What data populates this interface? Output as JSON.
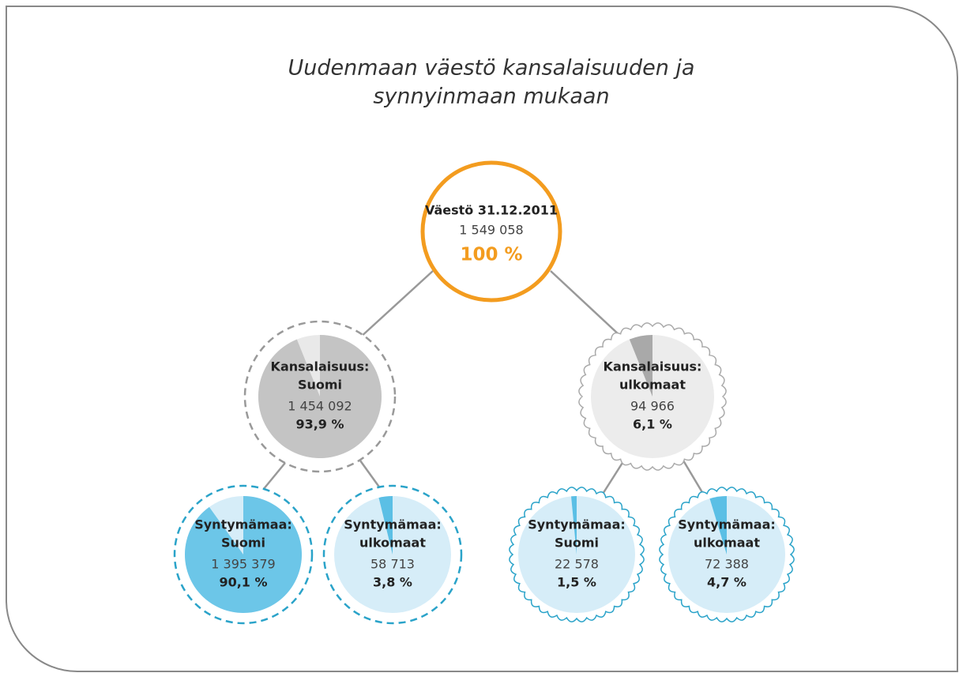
{
  "title": [
    "Uudenmaan väestö kansalaisuuden ja",
    "synnyinmaan mukaan"
  ],
  "nodes": [
    {
      "label": [
        "Väestö 31.12.2011"
      ],
      "count": "1 549 058",
      "percent": {
        "value": 100,
        "label": "100 %"
      }
    },
    {
      "label": [
        "Kansalaisuus:",
        "Suomi"
      ],
      "count": "1 454 092",
      "percent": {
        "value": 93.9,
        "label": "93,9 %"
      }
    },
    {
      "label": [
        "Kansalaisuus:",
        "ulkomaat"
      ],
      "count": "94 966",
      "percent": {
        "value": 6.1,
        "label": "6,1 %"
      }
    },
    {
      "label": [
        "Syntymämaa:",
        "Suomi"
      ],
      "count": "1 395 379",
      "percent": {
        "value": 90.1,
        "label": "90,1 %"
      }
    },
    {
      "label": [
        "Syntymämaa:",
        "ulkomaat"
      ],
      "count": "58 713",
      "percent": {
        "value": 3.8,
        "label": "3,8 %"
      }
    },
    {
      "label": [
        "Syntymämaa:",
        "Suomi"
      ],
      "count": "22 578",
      "percent": {
        "value": 1.5,
        "label": "1,5 %"
      }
    },
    {
      "label": [
        "Syntymämaa:",
        "ulkomaat"
      ],
      "count": "72 388",
      "percent": {
        "value": 4.7,
        "label": "4,7 %"
      }
    }
  ]
}
